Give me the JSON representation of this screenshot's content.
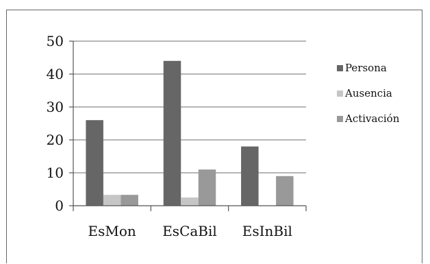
{
  "chart_data": {
    "type": "bar",
    "title": "",
    "xlabel": "",
    "ylabel": "",
    "categories": [
      "EsMon",
      "EsCaBil",
      "EsInBil"
    ],
    "series": [
      {
        "name": "Persona",
        "values": [
          26,
          44,
          18
        ],
        "color": "#666666"
      },
      {
        "name": "Ausencia",
        "values": [
          3.3,
          2.5,
          0
        ],
        "color": "#c6c6c6"
      },
      {
        "name": "Activación",
        "values": [
          3.3,
          11,
          9
        ],
        "color": "#999999"
      }
    ],
    "ylim": [
      0,
      50
    ],
    "yticks": [
      "0",
      "10",
      "20",
      "30",
      "40",
      "50"
    ],
    "grid": true,
    "legend_position": "right"
  }
}
